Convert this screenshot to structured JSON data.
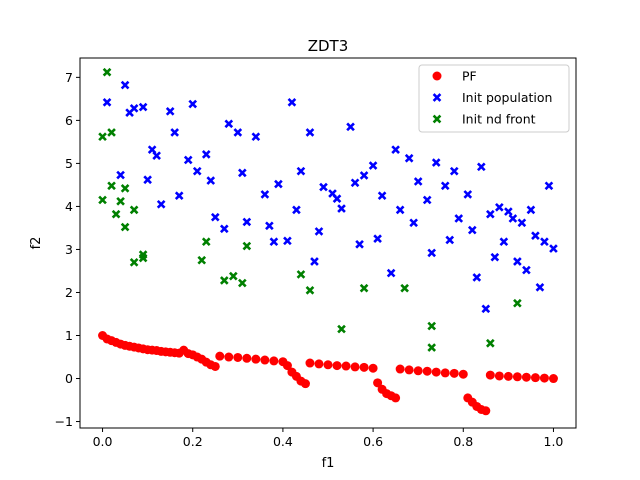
{
  "chart_data": {
    "type": "scatter",
    "title": "ZDT3",
    "xlabel": "f1",
    "ylabel": "f2",
    "xlim": [
      -0.05,
      1.05
    ],
    "ylim": [
      -1.15,
      7.45
    ],
    "xticks": [
      0.0,
      0.2,
      0.4,
      0.6,
      0.8,
      1.0
    ],
    "xtick_labels": [
      "0.0",
      "0.2",
      "0.4",
      "0.6",
      "0.8",
      "1.0"
    ],
    "yticks": [
      -1,
      0,
      1,
      2,
      3,
      4,
      5,
      6,
      7
    ],
    "ytick_labels": [
      "−1",
      "0",
      "1",
      "2",
      "3",
      "4",
      "5",
      "6",
      "7"
    ],
    "grid": false,
    "legend_position": "top-right",
    "series": [
      {
        "name": "PF",
        "marker": "circle",
        "color": "#ff0000",
        "points": [
          [
            0.0,
            1.0
          ],
          [
            0.01,
            0.92
          ],
          [
            0.02,
            0.88
          ],
          [
            0.03,
            0.84
          ],
          [
            0.04,
            0.8
          ],
          [
            0.05,
            0.77
          ],
          [
            0.06,
            0.75
          ],
          [
            0.07,
            0.73
          ],
          [
            0.08,
            0.71
          ],
          [
            0.09,
            0.69
          ],
          [
            0.1,
            0.67
          ],
          [
            0.11,
            0.66
          ],
          [
            0.12,
            0.65
          ],
          [
            0.13,
            0.63
          ],
          [
            0.14,
            0.62
          ],
          [
            0.15,
            0.61
          ],
          [
            0.16,
            0.6
          ],
          [
            0.17,
            0.59
          ],
          [
            0.18,
            0.66
          ],
          [
            0.19,
            0.58
          ],
          [
            0.2,
            0.55
          ],
          [
            0.21,
            0.5
          ],
          [
            0.22,
            0.45
          ],
          [
            0.23,
            0.38
          ],
          [
            0.24,
            0.32
          ],
          [
            0.25,
            0.28
          ],
          [
            0.26,
            0.52
          ],
          [
            0.28,
            0.5
          ],
          [
            0.3,
            0.49
          ],
          [
            0.32,
            0.47
          ],
          [
            0.34,
            0.45
          ],
          [
            0.36,
            0.43
          ],
          [
            0.38,
            0.41
          ],
          [
            0.4,
            0.39
          ],
          [
            0.41,
            0.3
          ],
          [
            0.42,
            0.15
          ],
          [
            0.43,
            0.05
          ],
          [
            0.44,
            -0.06
          ],
          [
            0.45,
            -0.12
          ],
          [
            0.46,
            0.36
          ],
          [
            0.48,
            0.34
          ],
          [
            0.5,
            0.32
          ],
          [
            0.52,
            0.3
          ],
          [
            0.54,
            0.29
          ],
          [
            0.56,
            0.27
          ],
          [
            0.58,
            0.26
          ],
          [
            0.6,
            0.24
          ],
          [
            0.61,
            -0.1
          ],
          [
            0.62,
            -0.25
          ],
          [
            0.63,
            -0.35
          ],
          [
            0.64,
            -0.4
          ],
          [
            0.65,
            -0.45
          ],
          [
            0.66,
            0.22
          ],
          [
            0.68,
            0.2
          ],
          [
            0.7,
            0.18
          ],
          [
            0.72,
            0.17
          ],
          [
            0.74,
            0.15
          ],
          [
            0.76,
            0.13
          ],
          [
            0.78,
            0.12
          ],
          [
            0.8,
            0.1
          ],
          [
            0.81,
            -0.45
          ],
          [
            0.82,
            -0.55
          ],
          [
            0.83,
            -0.65
          ],
          [
            0.84,
            -0.72
          ],
          [
            0.85,
            -0.75
          ],
          [
            0.86,
            0.08
          ],
          [
            0.88,
            0.06
          ],
          [
            0.9,
            0.05
          ],
          [
            0.92,
            0.04
          ],
          [
            0.94,
            0.03
          ],
          [
            0.96,
            0.02
          ],
          [
            0.98,
            0.01
          ],
          [
            1.0,
            0.0
          ]
        ]
      },
      {
        "name": "Init population",
        "marker": "x",
        "color": "#0000ff",
        "points": [
          [
            0.01,
            6.42
          ],
          [
            0.04,
            4.73
          ],
          [
            0.05,
            6.82
          ],
          [
            0.06,
            6.18
          ],
          [
            0.07,
            6.28
          ],
          [
            0.09,
            6.31
          ],
          [
            0.1,
            4.62
          ],
          [
            0.11,
            5.32
          ],
          [
            0.12,
            5.18
          ],
          [
            0.13,
            4.05
          ],
          [
            0.15,
            6.21
          ],
          [
            0.16,
            5.72
          ],
          [
            0.17,
            4.25
          ],
          [
            0.19,
            5.08
          ],
          [
            0.2,
            6.38
          ],
          [
            0.21,
            4.82
          ],
          [
            0.23,
            5.21
          ],
          [
            0.24,
            4.6
          ],
          [
            0.25,
            3.75
          ],
          [
            0.27,
            3.48
          ],
          [
            0.28,
            5.92
          ],
          [
            0.3,
            5.72
          ],
          [
            0.31,
            4.78
          ],
          [
            0.32,
            3.64
          ],
          [
            0.34,
            5.62
          ],
          [
            0.36,
            4.28
          ],
          [
            0.37,
            3.55
          ],
          [
            0.38,
            3.18
          ],
          [
            0.39,
            4.52
          ],
          [
            0.41,
            3.2
          ],
          [
            0.42,
            6.42
          ],
          [
            0.43,
            3.92
          ],
          [
            0.44,
            4.82
          ],
          [
            0.46,
            5.72
          ],
          [
            0.47,
            2.72
          ],
          [
            0.48,
            3.42
          ],
          [
            0.49,
            4.45
          ],
          [
            0.51,
            4.3
          ],
          [
            0.52,
            4.18
          ],
          [
            0.53,
            3.95
          ],
          [
            0.55,
            5.85
          ],
          [
            0.56,
            4.55
          ],
          [
            0.57,
            3.12
          ],
          [
            0.58,
            4.72
          ],
          [
            0.6,
            4.95
          ],
          [
            0.61,
            3.25
          ],
          [
            0.62,
            4.25
          ],
          [
            0.64,
            2.45
          ],
          [
            0.65,
            5.32
          ],
          [
            0.66,
            3.92
          ],
          [
            0.68,
            5.12
          ],
          [
            0.69,
            3.62
          ],
          [
            0.7,
            4.58
          ],
          [
            0.72,
            4.15
          ],
          [
            0.73,
            2.92
          ],
          [
            0.74,
            5.02
          ],
          [
            0.76,
            4.48
          ],
          [
            0.77,
            3.22
          ],
          [
            0.78,
            4.82
          ],
          [
            0.79,
            3.72
          ],
          [
            0.81,
            4.28
          ],
          [
            0.82,
            3.45
          ],
          [
            0.83,
            2.35
          ],
          [
            0.84,
            4.92
          ],
          [
            0.85,
            1.62
          ],
          [
            0.86,
            3.82
          ],
          [
            0.87,
            2.82
          ],
          [
            0.88,
            3.98
          ],
          [
            0.89,
            3.18
          ],
          [
            0.9,
            3.88
          ],
          [
            0.91,
            3.72
          ],
          [
            0.92,
            2.72
          ],
          [
            0.93,
            3.62
          ],
          [
            0.94,
            2.52
          ],
          [
            0.95,
            3.92
          ],
          [
            0.96,
            3.32
          ],
          [
            0.97,
            2.12
          ],
          [
            0.98,
            3.18
          ],
          [
            0.99,
            4.48
          ],
          [
            1.0,
            3.02
          ]
        ]
      },
      {
        "name": "Init nd front",
        "marker": "x",
        "color": "#008000",
        "points": [
          [
            0.0,
            5.62
          ],
          [
            0.01,
            7.12
          ],
          [
            0.02,
            5.72
          ],
          [
            0.0,
            4.15
          ],
          [
            0.02,
            4.48
          ],
          [
            0.03,
            3.82
          ],
          [
            0.04,
            4.12
          ],
          [
            0.05,
            4.42
          ],
          [
            0.05,
            3.52
          ],
          [
            0.07,
            2.7
          ],
          [
            0.07,
            3.92
          ],
          [
            0.09,
            2.8
          ],
          [
            0.09,
            2.88
          ],
          [
            0.22,
            2.75
          ],
          [
            0.23,
            3.18
          ],
          [
            0.27,
            2.28
          ],
          [
            0.29,
            2.38
          ],
          [
            0.31,
            2.22
          ],
          [
            0.32,
            3.08
          ],
          [
            0.44,
            2.42
          ],
          [
            0.46,
            2.05
          ],
          [
            0.53,
            1.15
          ],
          [
            0.58,
            2.1
          ],
          [
            0.67,
            2.1
          ],
          [
            0.73,
            1.22
          ],
          [
            0.73,
            0.72
          ],
          [
            0.86,
            0.82
          ],
          [
            0.92,
            1.75
          ]
        ]
      }
    ]
  }
}
